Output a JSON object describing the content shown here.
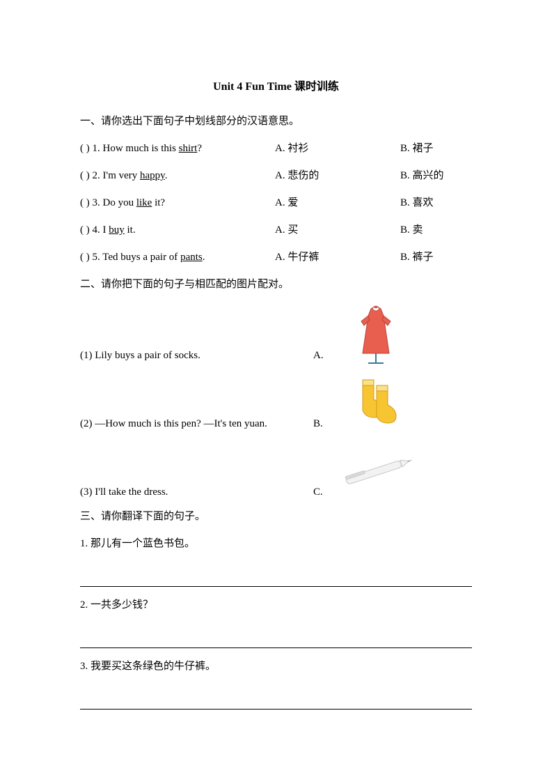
{
  "title": "Unit 4 Fun Time 课时训练",
  "section1": {
    "heading": "一、请你选出下面句子中划线部分的汉语意思。",
    "rows": [
      {
        "prefix": "(   ) 1. How much is this ",
        "underlined": "shirt",
        "suffix": "?",
        "optA": "A. 衬衫",
        "optB": "B. 裙子"
      },
      {
        "prefix": "(   ) 2. I'm very ",
        "underlined": "happy",
        "suffix": ".",
        "optA": "A. 悲伤的",
        "optB": "B. 高兴的"
      },
      {
        "prefix": "(   ) 3. Do you ",
        "underlined": "like",
        "suffix": " it?",
        "optA": "A. 爱",
        "optB": "B. 喜欢"
      },
      {
        "prefix": "(   ) 4. I ",
        "underlined": "buy",
        "suffix": " it.",
        "optA": "A. 买",
        "optB": "B. 卖"
      },
      {
        "prefix": "(   ) 5. Ted buys a pair of ",
        "underlined": "pants",
        "suffix": ".",
        "optA": "A. 牛仔裤",
        "optB": "B. 裤子"
      }
    ]
  },
  "section2": {
    "heading": "二、请你把下面的句子与相匹配的图片配对。",
    "rows": [
      {
        "text": "(1) Lily buys a pair of socks.",
        "label": "A.",
        "image": "dress"
      },
      {
        "text": "(2) —How much is this pen? —It's ten yuan.",
        "label": "B.",
        "image": "socks"
      },
      {
        "text": "(3) I'll take the dress.",
        "label": "C.",
        "image": "pen"
      }
    ]
  },
  "section3": {
    "heading": "三、请你翻译下面的句子。",
    "items": [
      "1. 那儿有一个蓝色书包。",
      "2. 一共多少钱？",
      "3. 我要买这条绿色的牛仔裤。"
    ]
  },
  "images": {
    "dress": {
      "body_fill": "#e95f4f",
      "body_stroke": "#b84338",
      "collar_fill": "#ffffff",
      "stand_stroke": "#3a7a9a"
    },
    "socks": {
      "fill": "#f7c531",
      "stroke": "#d49a1a",
      "cuff": "#f9e28a"
    },
    "pen": {
      "body_fill": "#f2f2f2",
      "body_stroke": "#bdbdbd",
      "clip_fill": "#d9d9d9",
      "tip_fill": "#8a8a8a"
    }
  }
}
